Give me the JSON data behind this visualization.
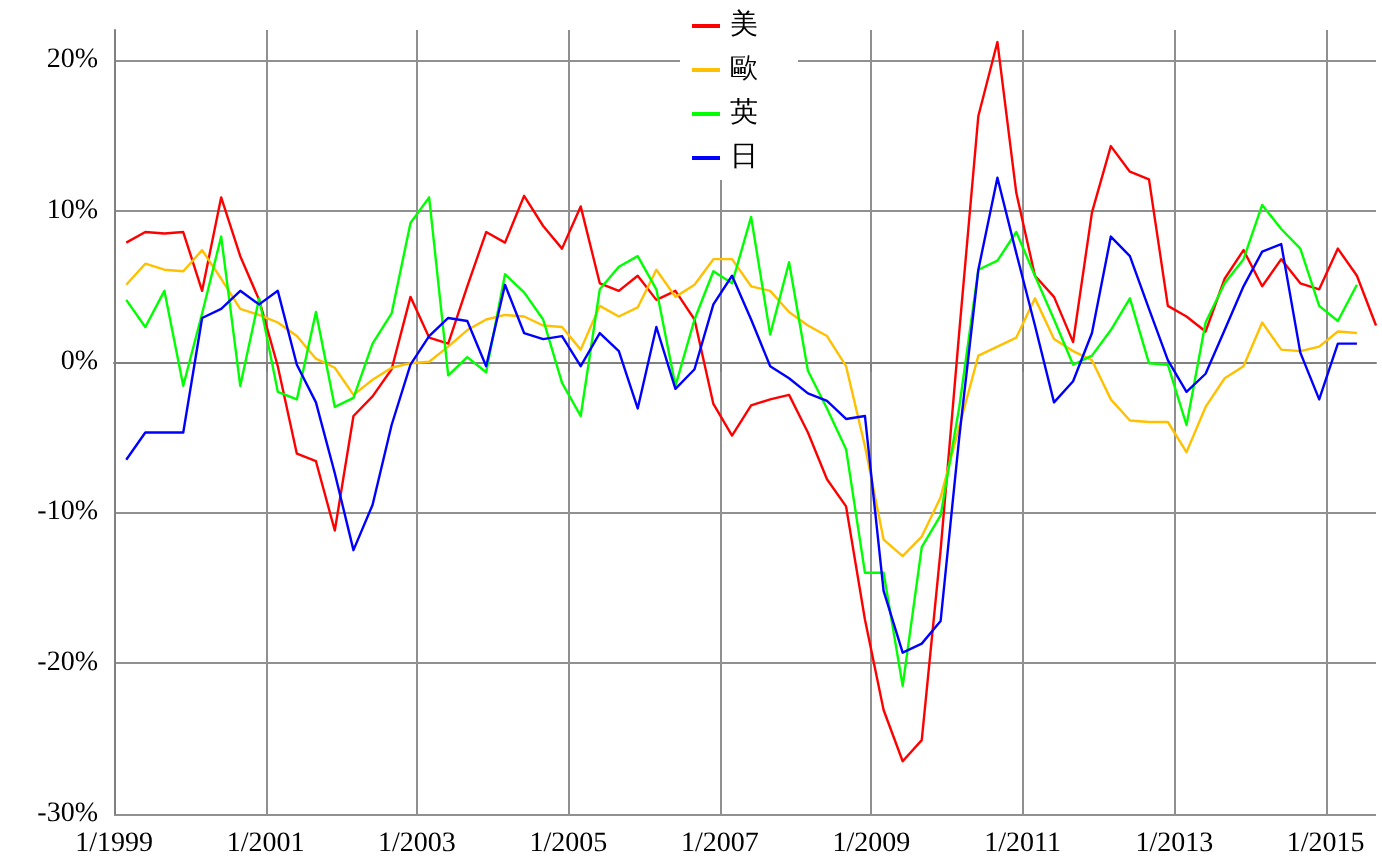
{
  "chart_data": {
    "type": "line",
    "x": [
      "1999-03",
      "1999-06",
      "1999-09",
      "1999-12",
      "2000-03",
      "2000-06",
      "2000-09",
      "2000-12",
      "2001-03",
      "2001-06",
      "2001-09",
      "2001-12",
      "2002-03",
      "2002-06",
      "2002-09",
      "2002-12",
      "2003-03",
      "2003-06",
      "2003-09",
      "2003-12",
      "2004-03",
      "2004-06",
      "2004-09",
      "2004-12",
      "2005-03",
      "2005-06",
      "2005-09",
      "2005-12",
      "2006-03",
      "2006-06",
      "2006-09",
      "2006-12",
      "2007-03",
      "2007-06",
      "2007-09",
      "2007-12",
      "2008-03",
      "2008-06",
      "2008-09",
      "2008-12",
      "2009-03",
      "2009-06",
      "2009-09",
      "2009-12",
      "2010-03",
      "2010-06",
      "2010-09",
      "2010-12",
      "2011-03",
      "2011-06",
      "2011-09",
      "2011-12",
      "2012-03",
      "2012-06",
      "2012-09",
      "2012-12",
      "2013-03",
      "2013-06",
      "2013-09",
      "2013-12",
      "2014-03",
      "2014-06",
      "2014-09",
      "2014-12",
      "2015-03",
      "2015-06",
      "2015-09"
    ],
    "series": [
      {
        "name": "美",
        "color": "#ff0000",
        "values": [
          7.9,
          8.6,
          8.5,
          8.6,
          4.7,
          10.9,
          7.0,
          4.1,
          -0.3,
          -6.1,
          -6.6,
          -11.2,
          -3.6,
          -2.3,
          -0.5,
          4.3,
          1.6,
          1.2,
          5.0,
          8.6,
          7.9,
          11.0,
          9.0,
          7.5,
          10.3,
          5.2,
          4.7,
          5.7,
          4.1,
          4.7,
          2.8,
          -2.8,
          -4.9,
          -2.9,
          -2.5,
          -2.2,
          -4.7,
          -7.8,
          -9.6,
          -17.1,
          -23.1,
          -26.5,
          -25.1,
          -12.5,
          2.0,
          16.3,
          21.2,
          11.2,
          5.7,
          4.3,
          1.3,
          9.9,
          14.3,
          12.6,
          12.1,
          3.7,
          3.0,
          2.0,
          5.5,
          7.4,
          5.0,
          6.8,
          5.2,
          4.8,
          7.5,
          5.7,
          2.4
        ]
      },
      {
        "name": "歐",
        "color": "#ffc000",
        "values": [
          5.1,
          6.5,
          6.1,
          6.0,
          7.4,
          5.5,
          3.5,
          3.1,
          2.6,
          1.7,
          0.2,
          -0.4,
          -2.2,
          -1.2,
          -0.4,
          -0.1,
          0.0,
          1.0,
          2.1,
          2.8,
          3.1,
          3.0,
          2.4,
          2.3,
          0.8,
          3.7,
          3.0,
          3.6,
          6.1,
          4.3,
          5.1,
          6.8,
          6.8,
          5.0,
          4.7,
          3.3,
          2.4,
          1.7,
          -0.3,
          -5.6,
          -11.8,
          -12.9,
          -11.6,
          -9.0,
          -4.3,
          0.4,
          1.0,
          1.6,
          4.2,
          1.5,
          0.7,
          0.1,
          -2.5,
          -3.9,
          -4.0,
          -4.0,
          -6.0,
          -3.0,
          -1.1,
          -0.3,
          2.6,
          0.8,
          0.7,
          1.0,
          2.0,
          1.9,
          null
        ]
      },
      {
        "name": "英",
        "color": "#00ff00",
        "values": [
          4.1,
          2.3,
          4.7,
          -1.6,
          3.2,
          8.3,
          -1.6,
          4.2,
          -2.0,
          -2.5,
          3.3,
          -3.0,
          -2.4,
          1.2,
          3.2,
          9.2,
          10.9,
          -0.9,
          0.3,
          -0.7,
          5.8,
          4.6,
          2.8,
          -1.4,
          -3.6,
          4.8,
          6.3,
          7.0,
          4.8,
          -1.6,
          2.8,
          6.0,
          5.2,
          9.6,
          1.8,
          6.6,
          -0.6,
          -3.1,
          -5.8,
          -14.0,
          -14.0,
          -21.5,
          -12.3,
          -10.2,
          -3.0,
          6.1,
          6.7,
          8.6,
          5.7,
          2.8,
          -0.2,
          0.4,
          2.1,
          4.2,
          -0.1,
          -0.2,
          -4.2,
          2.6,
          5.2,
          6.8,
          10.4,
          8.8,
          7.5,
          3.7,
          2.7,
          5.1,
          null
        ]
      },
      {
        "name": "日",
        "color": "#0000ff",
        "values": [
          -6.5,
          -4.7,
          -4.7,
          -4.7,
          2.9,
          3.5,
          4.7,
          3.8,
          4.7,
          -0.2,
          -2.7,
          -7.4,
          -12.5,
          -9.5,
          -4.2,
          -0.2,
          1.7,
          2.9,
          2.7,
          -0.3,
          5.1,
          1.9,
          1.5,
          1.7,
          -0.3,
          1.9,
          0.7,
          -3.1,
          2.3,
          -1.8,
          -0.5,
          3.8,
          5.7,
          2.8,
          -0.3,
          -1.1,
          -2.1,
          -2.6,
          -3.8,
          -3.6,
          -15.2,
          -19.3,
          -18.7,
          -17.2,
          -5.0,
          6.1,
          12.2,
          7.2,
          2.4,
          -2.7,
          -1.3,
          1.9,
          8.3,
          7.0,
          3.5,
          0.1,
          -2.0,
          -0.8,
          2.1,
          5.0,
          7.3,
          7.8,
          0.6,
          -2.5,
          1.2,
          1.2,
          null
        ]
      }
    ],
    "xlim": [
      "1999-01",
      "2015-09"
    ],
    "xticks": [
      {
        "value": "1999-01",
        "label": "1/1999"
      },
      {
        "value": "2001-01",
        "label": "1/2001"
      },
      {
        "value": "2003-01",
        "label": "1/2003"
      },
      {
        "value": "2005-01",
        "label": "1/2005"
      },
      {
        "value": "2007-01",
        "label": "1/2007"
      },
      {
        "value": "2009-01",
        "label": "1/2009"
      },
      {
        "value": "2011-01",
        "label": "1/2011"
      },
      {
        "value": "2013-01",
        "label": "1/2013"
      },
      {
        "value": "2015-01",
        "label": "1/2015"
      }
    ],
    "ylim": [
      -30,
      22
    ],
    "yticks": [
      {
        "value": -30,
        "label": "-30%"
      },
      {
        "value": -20,
        "label": "-20%"
      },
      {
        "value": -10,
        "label": "-10%"
      },
      {
        "value": 0,
        "label": "0%"
      },
      {
        "value": 10,
        "label": "10%"
      },
      {
        "value": 20,
        "label": "20%"
      }
    ],
    "grid": true,
    "legend": "top"
  }
}
